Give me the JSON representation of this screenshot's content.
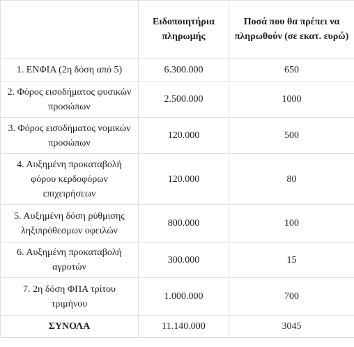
{
  "table": {
    "headers": [
      "",
      "Ειδοποιητήρια πληρωμής",
      "Ποσά που θα πρέπει να πληρωθούν  (σε εκατ. ευρώ)"
    ],
    "rows": [
      {
        "label": "1. ΕΝΦΙΑ (2η δόση από 5)",
        "notices": "6.300.000",
        "amount": "650"
      },
      {
        "label": "2. Φόρος εισοδήματος φυσικών προσώπων",
        "notices": "2.500.000",
        "amount": "1000"
      },
      {
        "label": "3. Φόρος εισοδήματος νομικών προσώπων",
        "notices": "120.000",
        "amount": "500"
      },
      {
        "label": "4. Αυξημένη προκαταβολή φόρου κερδοφόρων επιχειρήσεων",
        "notices": "120.000",
        "amount": "80"
      },
      {
        "label": "5. Αυξημένη δόση ρύθμισης ληξιπρόθεσμων οφειλών",
        "notices": "800.000",
        "amount": "100"
      },
      {
        "label": "6. Αυξημένη προκαταβολή αγροτών",
        "notices": "300.000",
        "amount": "15"
      },
      {
        "label": "7. 2η δόση ΦΠΑ τρίτου τριμήνου",
        "notices": "1.000.000",
        "amount": "700"
      }
    ],
    "total": {
      "label": "ΣΥΝΟΛΑ",
      "notices": "11.140.000",
      "amount": "3045"
    }
  }
}
